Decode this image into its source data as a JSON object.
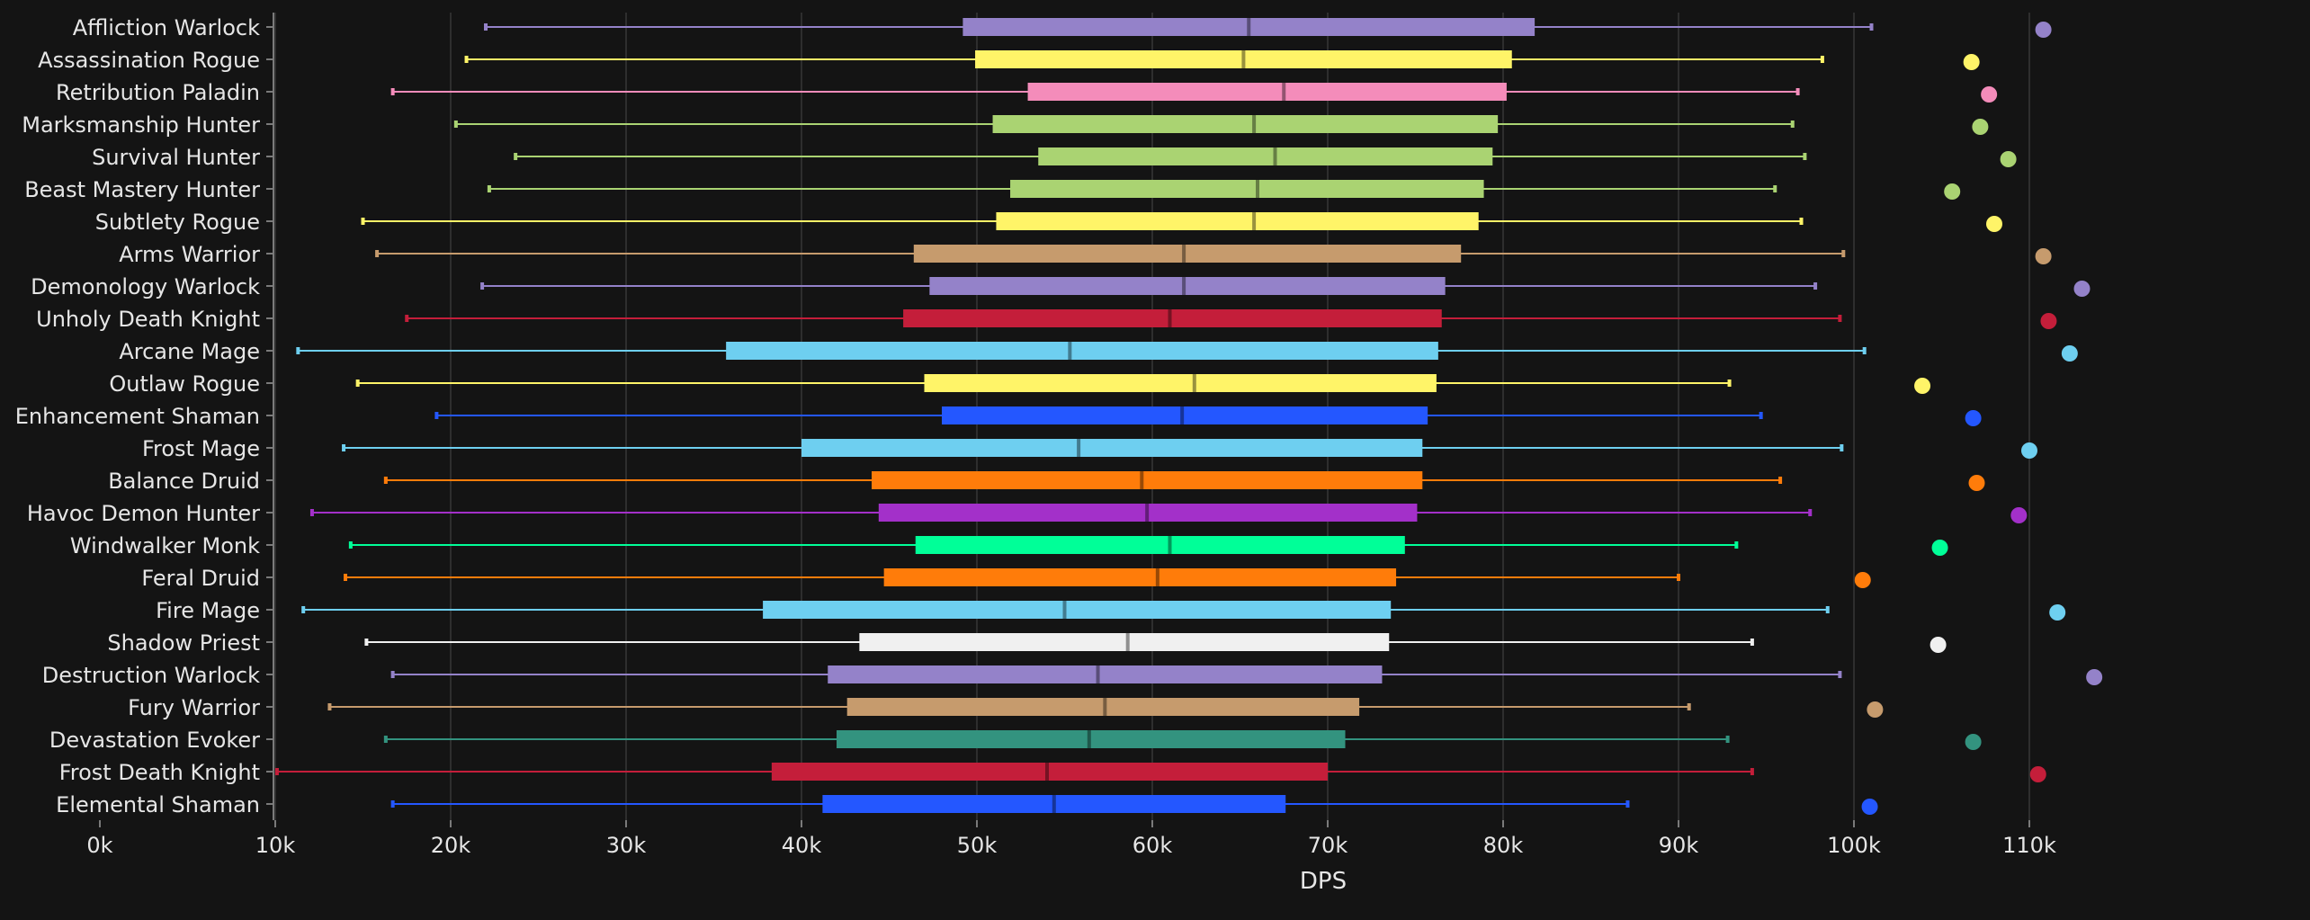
{
  "chart_data": {
    "type": "box",
    "orientation": "horizontal",
    "xlabel": "DPS",
    "xlim": [
      0,
      115000
    ],
    "x_ticks": [
      0,
      10000,
      20000,
      30000,
      40000,
      50000,
      60000,
      70000,
      80000,
      90000,
      100000,
      110000
    ],
    "x_tick_labels": [
      "0k",
      "10k",
      "20k",
      "30k",
      "40k",
      "50k",
      "60k",
      "70k",
      "80k",
      "90k",
      "100k",
      "110k"
    ],
    "grid": "vertical",
    "legend": "none",
    "background_color": "#141414",
    "series": [
      {
        "name": "Affliction Warlock",
        "color": "#9482C9",
        "min": 22000,
        "q1": 49200,
        "median": 65500,
        "q3": 81800,
        "max": 101000,
        "max_point": 110800
      },
      {
        "name": "Assassination Rogue",
        "color": "#FFF468",
        "min": 20900,
        "q1": 49900,
        "median": 65200,
        "q3": 80500,
        "max": 98200,
        "max_point": 106700
      },
      {
        "name": "Retribution Paladin",
        "color": "#F48CBA",
        "min": 16700,
        "q1": 52900,
        "median": 67500,
        "q3": 80200,
        "max": 96800,
        "max_point": 107700
      },
      {
        "name": "Marksmanship Hunter",
        "color": "#AAD372",
        "min": 20300,
        "q1": 50900,
        "median": 65800,
        "q3": 79700,
        "max": 96500,
        "max_point": 107200
      },
      {
        "name": "Survival Hunter",
        "color": "#AAD372",
        "min": 23700,
        "q1": 53500,
        "median": 67000,
        "q3": 79400,
        "max": 97200,
        "max_point": 108800
      },
      {
        "name": "Beast Mastery Hunter",
        "color": "#AAD372",
        "min": 22200,
        "q1": 51900,
        "median": 66000,
        "q3": 78900,
        "max": 95500,
        "max_point": 105600
      },
      {
        "name": "Subtlety Rogue",
        "color": "#FFF468",
        "min": 15000,
        "q1": 51100,
        "median": 65800,
        "q3": 78600,
        "max": 97000,
        "max_point": 108000
      },
      {
        "name": "Arms Warrior",
        "color": "#C69B6D",
        "min": 15800,
        "q1": 46400,
        "median": 61800,
        "q3": 77600,
        "max": 99400,
        "max_point": 110800
      },
      {
        "name": "Demonology Warlock",
        "color": "#9482C9",
        "min": 21800,
        "q1": 47300,
        "median": 61800,
        "q3": 76700,
        "max": 97800,
        "max_point": 113000
      },
      {
        "name": "Unholy Death Knight",
        "color": "#C41E3A",
        "min": 17500,
        "q1": 45800,
        "median": 61000,
        "q3": 76500,
        "max": 99200,
        "max_point": 111100
      },
      {
        "name": "Arcane Mage",
        "color": "#6ECFF0",
        "min": 11300,
        "q1": 35700,
        "median": 55300,
        "q3": 76300,
        "max": 100600,
        "max_point": 112300
      },
      {
        "name": "Outlaw Rogue",
        "color": "#FFF468",
        "min": 14700,
        "q1": 47000,
        "median": 62400,
        "q3": 76200,
        "max": 92900,
        "max_point": 103900
      },
      {
        "name": "Enhancement Shaman",
        "color": "#2457FF",
        "min": 19200,
        "q1": 48000,
        "median": 61700,
        "q3": 75700,
        "max": 94700,
        "max_point": 106800
      },
      {
        "name": "Frost Mage",
        "color": "#6ECFF0",
        "min": 13900,
        "q1": 40000,
        "median": 55800,
        "q3": 75400,
        "max": 99300,
        "max_point": 110000
      },
      {
        "name": "Balance Druid",
        "color": "#FF7C0A",
        "min": 16300,
        "q1": 44000,
        "median": 59400,
        "q3": 75400,
        "max": 95800,
        "max_point": 107000
      },
      {
        "name": "Havoc Demon Hunter",
        "color": "#A330C9",
        "min": 12100,
        "q1": 44400,
        "median": 59700,
        "q3": 75100,
        "max": 97500,
        "max_point": 109400
      },
      {
        "name": "Windwalker Monk",
        "color": "#00FF98",
        "min": 14300,
        "q1": 46500,
        "median": 61000,
        "q3": 74400,
        "max": 93300,
        "max_point": 104900
      },
      {
        "name": "Feral Druid",
        "color": "#FF7C0A",
        "min": 14000,
        "q1": 44700,
        "median": 60300,
        "q3": 73900,
        "max": 90000,
        "max_point": 100500
      },
      {
        "name": "Fire Mage",
        "color": "#6ECFF0",
        "min": 11600,
        "q1": 37800,
        "median": 55000,
        "q3": 73600,
        "max": 98500,
        "max_point": 111600
      },
      {
        "name": "Shadow Priest",
        "color": "#F0F0F0",
        "min": 15200,
        "q1": 43300,
        "median": 58600,
        "q3": 73500,
        "max": 94200,
        "max_point": 104800
      },
      {
        "name": "Destruction Warlock",
        "color": "#9482C9",
        "min": 16700,
        "q1": 41500,
        "median": 56900,
        "q3": 73100,
        "max": 99200,
        "max_point": 113700
      },
      {
        "name": "Fury Warrior",
        "color": "#C69B6D",
        "min": 13100,
        "q1": 42600,
        "median": 57300,
        "q3": 71800,
        "max": 90600,
        "max_point": 101200
      },
      {
        "name": "Devastation Evoker",
        "color": "#33937F",
        "min": 16300,
        "q1": 42000,
        "median": 56400,
        "q3": 71000,
        "max": 92800,
        "max_point": 106800
      },
      {
        "name": "Frost Death Knight",
        "color": "#C41E3A",
        "min": 10100,
        "q1": 38300,
        "median": 54000,
        "q3": 70000,
        "max": 94200,
        "max_point": 110500
      },
      {
        "name": "Elemental Shaman",
        "color": "#2457FF",
        "min": 16700,
        "q1": 41200,
        "median": 54400,
        "q3": 67600,
        "max": 87100,
        "max_point": 100900
      }
    ]
  }
}
